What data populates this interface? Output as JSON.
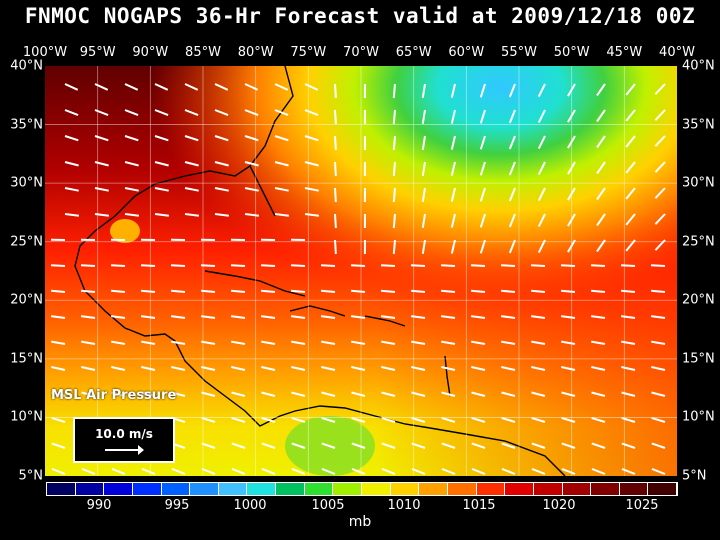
{
  "title": "FNMOC NOGAPS 36-Hr Forecast valid at 2009/12/18 00Z",
  "longitudes": [
    "100°W",
    "95°W",
    "90°W",
    "85°W",
    "80°W",
    "75°W",
    "70°W",
    "65°W",
    "60°W",
    "55°W",
    "50°W",
    "45°W",
    "40°W"
  ],
  "latitudes": [
    "40°N",
    "35°N",
    "30°N",
    "25°N",
    "20°N",
    "15°N",
    "10°N",
    "5°N"
  ],
  "field_label": "MSL Air Pressure",
  "vector_scale": "10.0 m/s",
  "colorbar": {
    "colors": [
      "#000060",
      "#0000a0",
      "#0000d8",
      "#0030ff",
      "#0060ff",
      "#2090ff",
      "#40c0ff",
      "#20e0e0",
      "#00c060",
      "#30e030",
      "#a0f000",
      "#f0f000",
      "#ffd000",
      "#ffa000",
      "#ff7000",
      "#ff3000",
      "#e00000",
      "#c00000",
      "#a00000",
      "#800000",
      "#600000",
      "#400000"
    ],
    "ticks": [
      "990",
      "995",
      "1000",
      "1005",
      "1010",
      "1015",
      "1020",
      "1025"
    ],
    "unit": "mb"
  },
  "map": {
    "dominant_colors": {
      "north_gulf": "#700000",
      "atlantic_east": "#ff3000",
      "caribbean": "#ff7000",
      "north_sa": "#f0f000",
      "low_center": "#40c0ff"
    }
  }
}
